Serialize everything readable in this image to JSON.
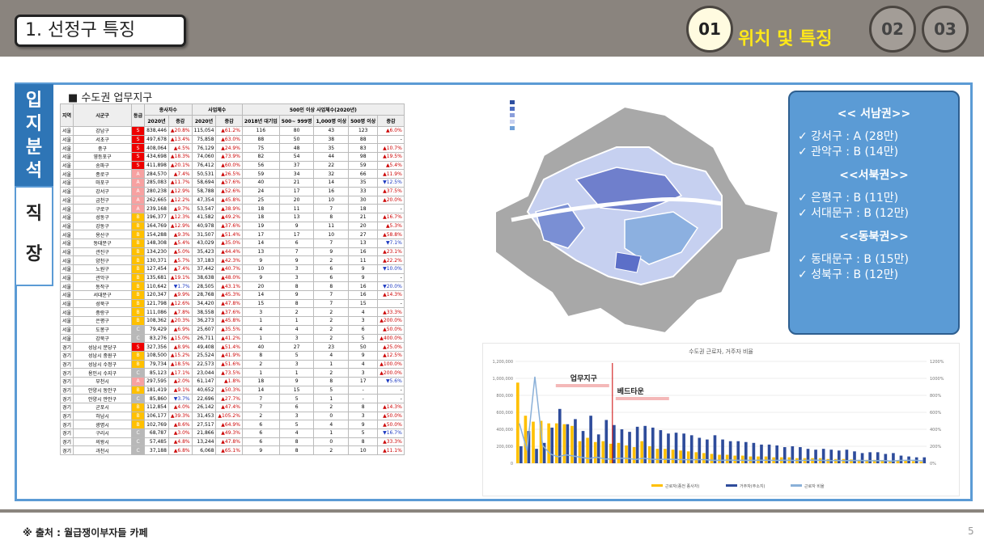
{
  "header": {
    "title": "1. 선정구 특징",
    "c1": "01",
    "c2": "02",
    "c3": "03",
    "section": "위치 및 특징"
  },
  "tabs": {
    "t1": "입지분석",
    "t2": "직장"
  },
  "table": {
    "title": "■ 수도권 업무지구",
    "h1": [
      "지역",
      "시군구",
      "등급",
      "종사자수",
      "사업체수",
      "500인 이상 사업체수(2020년)"
    ],
    "h2": [
      "2020년",
      "증감",
      "2020년",
      "증감",
      "2018년 대기업",
      "500~ 999명",
      "1,000명 이상",
      "500명 이상",
      "증감"
    ],
    "rows": [
      [
        "서울",
        "강남구",
        "S",
        "838,446",
        "▲20.8%",
        "115,054",
        "▲61.2%",
        "116",
        "80",
        "43",
        "123",
        "▲6.0%"
      ],
      [
        "서울",
        "서초구",
        "S",
        "497,678",
        "▲13.4%",
        "75,858",
        "▲63.0%",
        "88",
        "50",
        "38",
        "88",
        "-"
      ],
      [
        "서울",
        "중구",
        "S",
        "408,064",
        "▲4.5%",
        "76,129",
        "▲24.9%",
        "75",
        "48",
        "35",
        "83",
        "▲10.7%"
      ],
      [
        "서울",
        "영등포구",
        "S",
        "434,698",
        "▲18.3%",
        "74,060",
        "▲73.9%",
        "82",
        "54",
        "44",
        "98",
        "▲19.5%"
      ],
      [
        "서울",
        "송파구",
        "S",
        "411,898",
        "▲20.1%",
        "76,412",
        "▲60.0%",
        "56",
        "37",
        "22",
        "59",
        "▲5.4%"
      ],
      [
        "서울",
        "종로구",
        "A",
        "284,570",
        "▲7.4%",
        "50,531",
        "▲26.5%",
        "59",
        "34",
        "32",
        "66",
        "▲11.9%"
      ],
      [
        "서울",
        "마포구",
        "A",
        "285,083",
        "▲11.7%",
        "58,694",
        "▲57.6%",
        "40",
        "21",
        "14",
        "35",
        "▼12.5%"
      ],
      [
        "서울",
        "강서구",
        "A",
        "280,238",
        "▲12.9%",
        "58,788",
        "▲52.6%",
        "24",
        "17",
        "16",
        "33",
        "▲37.5%"
      ],
      [
        "서울",
        "금천구",
        "A",
        "262,665",
        "▲12.2%",
        "47,354",
        "▲45.8%",
        "25",
        "20",
        "10",
        "30",
        "▲20.0%"
      ],
      [
        "서울",
        "구로구",
        "A",
        "239,168",
        "▲9.7%",
        "53,547",
        "▲38.9%",
        "18",
        "11",
        "7",
        "18",
        "-"
      ],
      [
        "서울",
        "성동구",
        "B",
        "196,377",
        "▲12.3%",
        "41,582",
        "▲49.2%",
        "18",
        "13",
        "8",
        "21",
        "▲16.7%"
      ],
      [
        "서울",
        "강동구",
        "B",
        "164,769",
        "▲12.9%",
        "40,978",
        "▲37.6%",
        "19",
        "9",
        "11",
        "20",
        "▲5.3%"
      ],
      [
        "서울",
        "용산구",
        "B",
        "154,288",
        "▲9.3%",
        "31,507",
        "▲51.4%",
        "17",
        "17",
        "10",
        "27",
        "▲58.8%"
      ],
      [
        "서울",
        "동대문구",
        "B",
        "148,308",
        "▲5.4%",
        "43,029",
        "▲35.0%",
        "14",
        "6",
        "7",
        "13",
        "▼7.1%"
      ],
      [
        "서울",
        "관진구",
        "B",
        "134,230",
        "▲5.0%",
        "35,423",
        "▲44.4%",
        "13",
        "7",
        "9",
        "16",
        "▲23.1%"
      ],
      [
        "서울",
        "양천구",
        "B",
        "130,371",
        "▲5.7%",
        "37,183",
        "▲42.3%",
        "9",
        "9",
        "2",
        "11",
        "▲22.2%"
      ],
      [
        "서울",
        "노원구",
        "B",
        "127,454",
        "▲7.4%",
        "37,442",
        "▲40.7%",
        "10",
        "3",
        "6",
        "9",
        "▼10.0%"
      ],
      [
        "서울",
        "관악구",
        "B",
        "135,681",
        "▲19.1%",
        "38,638",
        "▲48.0%",
        "9",
        "3",
        "6",
        "9",
        "-"
      ],
      [
        "서울",
        "동작구",
        "B",
        "110,642",
        "▼1.7%",
        "28,505",
        "▲43.1%",
        "20",
        "8",
        "8",
        "16",
        "▼20.0%"
      ],
      [
        "서울",
        "서대문구",
        "B",
        "120,347",
        "▲9.9%",
        "28,768",
        "▲45.3%",
        "14",
        "9",
        "7",
        "16",
        "▲14.3%"
      ],
      [
        "서울",
        "성북구",
        "B",
        "121,798",
        "▲12.6%",
        "34,420",
        "▲47.8%",
        "15",
        "8",
        "7",
        "15",
        "-"
      ],
      [
        "서울",
        "중랑구",
        "B",
        "111,086",
        "▲7.8%",
        "38,558",
        "▲37.6%",
        "3",
        "2",
        "2",
        "4",
        "▲33.3%"
      ],
      [
        "서울",
        "은평구",
        "B",
        "108,362",
        "▲20.3%",
        "36,273",
        "▲45.8%",
        "1",
        "1",
        "2",
        "3",
        "▲200.0%"
      ],
      [
        "서울",
        "도봉구",
        "C",
        "79,429",
        "▲6.9%",
        "25,607",
        "▲35.5%",
        "4",
        "4",
        "2",
        "6",
        "▲50.0%"
      ],
      [
        "서울",
        "강북구",
        "C",
        "83,276",
        "▲15.0%",
        "26,711",
        "▲41.2%",
        "1",
        "3",
        "2",
        "5",
        "▲400.0%"
      ],
      [
        "경기",
        "성남시 분당구",
        "S",
        "327,356",
        "▲8.9%",
        "49,408",
        "▲51.4%",
        "40",
        "27",
        "23",
        "50",
        "▲25.0%"
      ],
      [
        "경기",
        "성남시 중원구",
        "B",
        "108,500",
        "▲15.2%",
        "25,524",
        "▲41.9%",
        "8",
        "5",
        "4",
        "9",
        "▲12.5%"
      ],
      [
        "경기",
        "성남시 수정구",
        "B",
        "79,734",
        "▲18.5%",
        "22,573",
        "▲51.6%",
        "2",
        "3",
        "1",
        "4",
        "▲100.0%"
      ],
      [
        "경기",
        "용인시 수지구",
        "C",
        "85,123",
        "▲17.1%",
        "23,044",
        "▲73.5%",
        "1",
        "1",
        "2",
        "3",
        "▲200.0%"
      ],
      [
        "경기",
        "부천시",
        "A",
        "297,595",
        "▲2.0%",
        "61,147",
        "▲1.8%",
        "18",
        "9",
        "8",
        "17",
        "▼5.6%"
      ],
      [
        "경기",
        "안양시 동안구",
        "B",
        "181,419",
        "▲9.1%",
        "40,652",
        "▲50.3%",
        "14",
        "15",
        "5",
        "-",
        "-"
      ],
      [
        "경기",
        "안양시 만안구",
        "C",
        "85,860",
        "▼3.7%",
        "22,696",
        "▲27.7%",
        "7",
        "5",
        "1",
        "-",
        "-"
      ],
      [
        "경기",
        "군포시",
        "B",
        "112,854",
        "▲4.0%",
        "26,142",
        "▲47.4%",
        "7",
        "6",
        "2",
        "8",
        "▲14.3%"
      ],
      [
        "경기",
        "하남시",
        "B",
        "106,177",
        "▲39.3%",
        "31,453",
        "▲105.2%",
        "2",
        "3",
        "0",
        "3",
        "▲50.0%"
      ],
      [
        "경기",
        "광명시",
        "B",
        "102,769",
        "▲8.6%",
        "27,517",
        "▲64.9%",
        "6",
        "5",
        "4",
        "9",
        "▲50.0%"
      ],
      [
        "경기",
        "구리시",
        "C",
        "68,787",
        "▲3.0%",
        "21,866",
        "▲49.3%",
        "6",
        "4",
        "1",
        "5",
        "▼16.7%"
      ],
      [
        "경기",
        "의왕시",
        "C",
        "57,485",
        "▲4.8%",
        "13,244",
        "▲47.8%",
        "6",
        "8",
        "0",
        "8",
        "▲33.3%"
      ],
      [
        "경기",
        "과천시",
        "C",
        "37,188",
        "▲6.8%",
        "6,068",
        "▲65.1%",
        "9",
        "8",
        "2",
        "10",
        "▲11.1%"
      ]
    ]
  },
  "info": {
    "h1": "<< 서남권>>",
    "a": "✓ 강서구 : A (28만)",
    "b": "✓ 관악구 : B (14만)",
    "h2": "<<서북권>>",
    "c": "✓ 은평구 : B (11만)",
    "d": "✓ 서대문구 : B (12만)",
    "h3": "<<동북권>>",
    "e": "✓ 동대문구 : B (15만)",
    "f": "✓ 성북구 : B (12만)"
  },
  "chart_data": {
    "type": "bar",
    "title": "수도권 근로자, 거주자 비율",
    "ylim": [
      0,
      1200000
    ],
    "y2lim": [
      0,
      1200
    ],
    "yticks": [
      "1,200,000",
      "1,000,000",
      "800,000",
      "600,000",
      "400,000",
      "200,000",
      "0"
    ],
    "y2ticks": [
      "1200%",
      "1000%",
      "800%",
      "600%",
      "400%",
      "200%",
      "0%"
    ],
    "annot1": "업무지구",
    "annot2": "베드타운",
    "series": [
      {
        "name": "근로자(종전 종사자)",
        "color": "#ffc000",
        "values": [
          950,
          560,
          490,
          500,
          470,
          470,
          460,
          440,
          260,
          300,
          250,
          260,
          230,
          240,
          210,
          190,
          260,
          200,
          170,
          170,
          160,
          150,
          140,
          130,
          120,
          110,
          100,
          100,
          90,
          90,
          80,
          80,
          80,
          70,
          70,
          70,
          60,
          60,
          60,
          60,
          50,
          50,
          50,
          45,
          40,
          40,
          40,
          35,
          30,
          30,
          28,
          25,
          20
        ]
      },
      {
        "name": "거주자(주소지)",
        "color": "#2e4c9b",
        "values": [
          200,
          380,
          170,
          240,
          420,
          640,
          460,
          520,
          380,
          560,
          340,
          510,
          450,
          400,
          370,
          430,
          440,
          420,
          390,
          350,
          360,
          350,
          330,
          300,
          280,
          330,
          280,
          260,
          260,
          250,
          240,
          220,
          220,
          210,
          190,
          200,
          190,
          170,
          160,
          170,
          160,
          150,
          160,
          140,
          120,
          130,
          130,
          110,
          120,
          90,
          80,
          70,
          70
        ]
      },
      {
        "name": "근로자 비율",
        "color": "#8ab0d8",
        "values": [
          470,
          150,
          1020,
          210,
          110,
          75,
          100,
          85,
          70,
          55,
          72,
          50,
          50,
          60,
          57,
          44,
          60,
          48,
          44,
          48,
          45,
          43,
          42,
          43,
          43,
          34,
          35,
          38,
          34,
          36,
          33,
          36,
          36,
          33,
          36,
          35,
          32,
          35,
          37,
          35,
          31,
          33,
          31,
          32,
          33,
          30,
          30,
          32,
          25,
          33,
          35,
          35,
          28
        ]
      }
    ]
  },
  "footer": {
    "source": "※ 출처 : 월급쟁이부자들 카페",
    "page": "5"
  }
}
